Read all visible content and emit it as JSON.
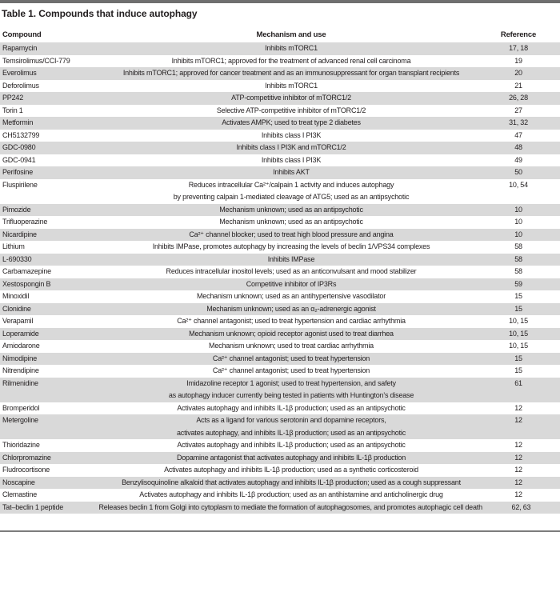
{
  "title": "Table 1. Compounds that induce autophagy",
  "header": {
    "columns": [
      "Compound",
      "Mechanism and use",
      "Reference"
    ]
  },
  "colors": {
    "shade": "#d9d9d9",
    "bar": "#6f6f6f",
    "rule": "#7c7c7c",
    "text": "#231f20"
  },
  "rows": [
    {
      "compound": "Rapamycin",
      "mechanism": [
        "Inhibits mTORC1"
      ],
      "reference": "17, 18"
    },
    {
      "compound": "Temsirolimus/CCI-779",
      "mechanism": [
        "Inhibits mTORC1; approved for the treatment of advanced renal cell carcinoma"
      ],
      "reference": "19"
    },
    {
      "compound": "Everolimus",
      "mechanism": [
        "Inhibits mTORC1; approved for cancer treatment and as an immunosuppressant for organ transplant recipients"
      ],
      "reference": "20"
    },
    {
      "compound": "Deforolimus",
      "mechanism": [
        "Inhibits mTORC1"
      ],
      "reference": "21"
    },
    {
      "compound": "PP242",
      "mechanism": [
        "ATP-competitive inhibitor of mTORC1/2"
      ],
      "reference": "26, 28"
    },
    {
      "compound": "Torin 1",
      "mechanism": [
        "Selective ATP-competitive inhibitor of mTORC1/2"
      ],
      "reference": "27"
    },
    {
      "compound": "Metformin",
      "mechanism": [
        "Activates AMPK; used to treat type 2 diabetes"
      ],
      "reference": "31, 32"
    },
    {
      "compound": "CH5132799",
      "mechanism": [
        "Inhibits class I PI3K"
      ],
      "reference": "47"
    },
    {
      "compound": "GDC-0980",
      "mechanism": [
        "Inhibits class I PI3K and mTORC1/2"
      ],
      "reference": "48"
    },
    {
      "compound": "GDC-0941",
      "mechanism": [
        "Inhibits class I PI3K"
      ],
      "reference": "49"
    },
    {
      "compound": "Perifosine",
      "mechanism": [
        "Inhibits AKT"
      ],
      "reference": "50"
    },
    {
      "compound": "Fluspirilene",
      "mechanism": [
        "Reduces intracellular Ca²⁺/calpain 1 activity and induces autophagy",
        "by preventing calpain 1-mediated cleavage of ATG5; used as an antipsychotic"
      ],
      "reference": "10, 54"
    },
    {
      "compound": "Pimozide",
      "mechanism": [
        "Mechanism unknown; used as an antipsychotic"
      ],
      "reference": "10"
    },
    {
      "compound": "Trifluoperazine",
      "mechanism": [
        "Mechanism unknown; used as an antipsychotic"
      ],
      "reference": "10"
    },
    {
      "compound": "Nicardipine",
      "mechanism": [
        "Ca²⁺ channel blocker; used to treat high blood pressure and angina"
      ],
      "reference": "10"
    },
    {
      "compound": "Lithium",
      "mechanism": [
        "Inhibits IMPase, promotes autophagy by increasing the levels of beclin 1/VPS34 complexes"
      ],
      "reference": "58"
    },
    {
      "compound": "L-690330",
      "mechanism": [
        "Inhibits IMPase"
      ],
      "reference": "58"
    },
    {
      "compound": "Carbamazepine",
      "mechanism": [
        "Reduces intracellular inositol levels; used as an anticonvulsant and mood stabilizer"
      ],
      "reference": "58"
    },
    {
      "compound": "Xestospongin B",
      "mechanism": [
        "Competitive inhibitor of IP3Rs"
      ],
      "reference": "59"
    },
    {
      "compound": "Minoxidil",
      "mechanism": [
        "Mechanism unknown; used as an antihypertensive vasodilator"
      ],
      "reference": "15"
    },
    {
      "compound": "Clonidine",
      "mechanism": [
        "Mechanism unknown; used as an α₂-adrenergic agonist"
      ],
      "reference": "15"
    },
    {
      "compound": "Verapamil",
      "mechanism": [
        "Ca²⁺ channel antagonist; used to treat hypertension and cardiac arrhythmia"
      ],
      "reference": "10, 15"
    },
    {
      "compound": "Loperamide",
      "mechanism": [
        "Mechanism unknown; opioid receptor agonist used to treat diarrhea"
      ],
      "reference": "10, 15"
    },
    {
      "compound": "Amiodarone",
      "mechanism": [
        "Mechanism unknown; used to treat cardiac arrhythmia"
      ],
      "reference": "10, 15"
    },
    {
      "compound": "Nimodipine",
      "mechanism": [
        "Ca²⁺ channel antagonist; used to treat hypertension"
      ],
      "reference": "15"
    },
    {
      "compound": "Nitrendipine",
      "mechanism": [
        "Ca²⁺ channel antagonist; used to treat hypertension"
      ],
      "reference": "15"
    },
    {
      "compound": "Rilmenidine",
      "mechanism": [
        "Imidazoline receptor 1 agonist; used to treat hypertension, and safety",
        "as autophagy inducer currently being tested in patients with Huntington’s disease"
      ],
      "reference": "61"
    },
    {
      "compound": "Bromperidol",
      "mechanism": [
        "Activates autophagy and inhibits IL-1β production; used as an antipsychotic"
      ],
      "reference": "12"
    },
    {
      "compound": "Metergoline",
      "mechanism": [
        "Acts as a ligand for various serotonin and dopamine receptors,",
        "activates autophagy, and inhibits IL-1β production; used as an antipsychotic"
      ],
      "reference": "12"
    },
    {
      "compound": "Thioridazine",
      "mechanism": [
        "Activates autophagy and inhibits IL-1β production; used as an antipsychotic"
      ],
      "reference": "12"
    },
    {
      "compound": "Chlorpromazine",
      "mechanism": [
        "Dopamine antagonist that activates autophagy and inhibits IL-1β production"
      ],
      "reference": "12"
    },
    {
      "compound": "Fludrocortisone",
      "mechanism": [
        "Activates autophagy and inhibits IL-1β production; used as a synthetic corticosteroid"
      ],
      "reference": "12"
    },
    {
      "compound": "Noscapine",
      "mechanism": [
        "Benzylisoquinoline alkaloid that activates autophagy and inhibits IL-1β production; used as a cough suppressant"
      ],
      "reference": "12"
    },
    {
      "compound": "Clemastine",
      "mechanism": [
        "Activates autophagy and inhibits IL-1β production; used as an antihistamine and anticholinergic drug"
      ],
      "reference": "12"
    },
    {
      "compound": "Tat–beclin 1 peptide",
      "mechanism": [
        "Releases beclin 1 from Golgi into cytoplasm to mediate the formation of autophagosomes, and promotes autophagic cell death"
      ],
      "reference": "62, 63"
    }
  ]
}
